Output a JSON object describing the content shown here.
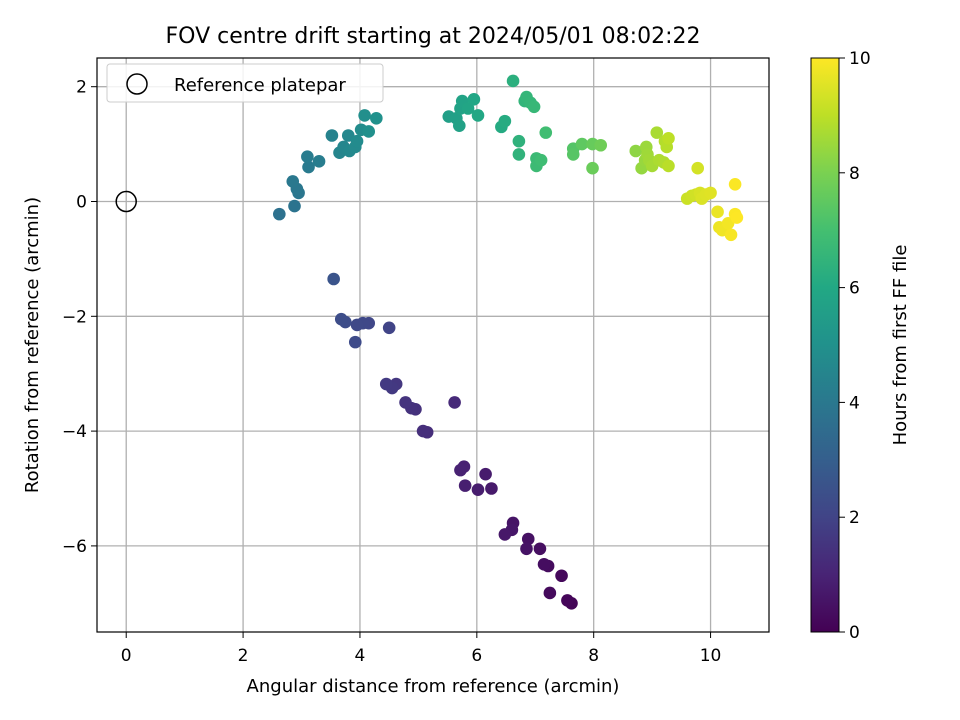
{
  "chart_data": {
    "type": "scatter",
    "title": "FOV centre drift starting at 2024/05/01 08:02:22",
    "xlabel": "Angular distance from reference (arcmin)",
    "ylabel": "Rotation from reference (arcmin)",
    "xlim": [
      -0.5,
      11
    ],
    "ylim": [
      -7.5,
      2.5
    ],
    "x_ticks": [
      0,
      2,
      4,
      6,
      8,
      10
    ],
    "y_ticks": [
      2,
      0,
      -2,
      -4,
      -6
    ],
    "grid": true,
    "legend": {
      "position": "top-left",
      "entries": [
        "Reference platepar"
      ]
    },
    "colorbar": {
      "label": "Hours from first FF file",
      "range": [
        0,
        10
      ],
      "ticks": [
        0,
        2,
        4,
        6,
        8,
        10
      ],
      "colormap": "viridis"
    },
    "reference_point": {
      "x": 0,
      "y": 0
    },
    "points": [
      [
        7.62,
        -7.0,
        0.1
      ],
      [
        7.55,
        -6.95,
        0.15
      ],
      [
        7.45,
        -6.52,
        0.2
      ],
      [
        7.25,
        -6.82,
        0.25
      ],
      [
        7.22,
        -6.35,
        0.3
      ],
      [
        7.15,
        -6.32,
        0.35
      ],
      [
        7.08,
        -6.05,
        0.4
      ],
      [
        6.88,
        -5.88,
        0.45
      ],
      [
        6.85,
        -6.05,
        0.5
      ],
      [
        6.62,
        -5.6,
        0.55
      ],
      [
        6.6,
        -5.72,
        0.6
      ],
      [
        6.48,
        -5.8,
        0.65
      ],
      [
        6.25,
        -5.0,
        0.7
      ],
      [
        6.15,
        -4.75,
        0.75
      ],
      [
        6.02,
        -5.02,
        0.8
      ],
      [
        5.8,
        -4.95,
        0.85
      ],
      [
        5.78,
        -4.62,
        0.9
      ],
      [
        5.72,
        -4.68,
        0.95
      ],
      [
        5.62,
        -3.5,
        1.2
      ],
      [
        5.15,
        -4.02,
        1.3
      ],
      [
        5.08,
        -4.0,
        1.35
      ],
      [
        4.95,
        -3.62,
        1.4
      ],
      [
        4.88,
        -3.6,
        1.45
      ],
      [
        4.78,
        -3.5,
        1.5
      ],
      [
        4.62,
        -3.18,
        1.6
      ],
      [
        4.55,
        -3.25,
        1.65
      ],
      [
        4.45,
        -3.18,
        1.7
      ],
      [
        4.5,
        -2.2,
        2.0
      ],
      [
        4.15,
        -2.12,
        2.1
      ],
      [
        4.05,
        -2.12,
        2.15
      ],
      [
        3.95,
        -2.15,
        2.2
      ],
      [
        3.92,
        -2.45,
        2.25
      ],
      [
        3.75,
        -2.1,
        2.3
      ],
      [
        3.68,
        -2.05,
        2.35
      ],
      [
        3.55,
        -1.35,
        2.6
      ],
      [
        2.62,
        -0.22,
        3.7
      ],
      [
        2.88,
        -0.08,
        3.8
      ],
      [
        2.95,
        0.15,
        3.9
      ],
      [
        2.92,
        0.22,
        3.95
      ],
      [
        2.85,
        0.35,
        4.0
      ],
      [
        3.12,
        0.6,
        4.1
      ],
      [
        3.1,
        0.78,
        4.15
      ],
      [
        3.3,
        0.7,
        4.2
      ],
      [
        3.52,
        1.15,
        4.4
      ],
      [
        3.65,
        0.85,
        4.5
      ],
      [
        3.72,
        0.95,
        4.55
      ],
      [
        3.8,
        1.15,
        4.6
      ],
      [
        3.82,
        0.88,
        4.65
      ],
      [
        3.92,
        0.95,
        4.7
      ],
      [
        3.95,
        1.05,
        4.75
      ],
      [
        4.02,
        1.25,
        4.8
      ],
      [
        4.08,
        1.5,
        4.9
      ],
      [
        4.15,
        1.22,
        4.95
      ],
      [
        4.28,
        1.45,
        5.0
      ],
      [
        5.52,
        1.48,
        5.6
      ],
      [
        5.65,
        1.45,
        5.65
      ],
      [
        5.7,
        1.32,
        5.7
      ],
      [
        5.72,
        1.62,
        5.75
      ],
      [
        5.75,
        1.75,
        5.8
      ],
      [
        5.85,
        1.62,
        5.85
      ],
      [
        5.95,
        1.78,
        5.9
      ],
      [
        6.02,
        1.5,
        5.95
      ],
      [
        6.42,
        1.3,
        6.1
      ],
      [
        6.48,
        1.4,
        6.15
      ],
      [
        6.62,
        2.1,
        6.3
      ],
      [
        6.72,
        1.05,
        6.4
      ],
      [
        6.72,
        0.82,
        6.45
      ],
      [
        6.82,
        1.75,
        6.5
      ],
      [
        6.85,
        1.82,
        6.55
      ],
      [
        6.92,
        1.72,
        6.6
      ],
      [
        6.98,
        1.65,
        6.65
      ],
      [
        7.02,
        0.75,
        6.75
      ],
      [
        7.02,
        0.62,
        6.8
      ],
      [
        7.1,
        0.72,
        6.85
      ],
      [
        7.18,
        1.2,
        6.9
      ],
      [
        7.65,
        0.92,
        7.3
      ],
      [
        7.65,
        0.82,
        7.35
      ],
      [
        7.8,
        1.0,
        7.5
      ],
      [
        7.98,
        1.0,
        7.65
      ],
      [
        7.98,
        0.58,
        7.7
      ],
      [
        8.12,
        0.98,
        7.8
      ],
      [
        8.72,
        0.88,
        8.3
      ],
      [
        8.82,
        0.58,
        8.4
      ],
      [
        8.88,
        0.72,
        8.45
      ],
      [
        8.9,
        0.95,
        8.5
      ],
      [
        8.92,
        0.82,
        8.55
      ],
      [
        8.95,
        0.72,
        8.6
      ],
      [
        9.0,
        0.62,
        8.65
      ],
      [
        9.08,
        1.2,
        8.7
      ],
      [
        9.12,
        0.72,
        8.75
      ],
      [
        9.2,
        0.68,
        8.8
      ],
      [
        9.22,
        1.05,
        8.85
      ],
      [
        9.25,
        0.95,
        8.9
      ],
      [
        9.28,
        0.62,
        8.95
      ],
      [
        9.28,
        1.1,
        9.0
      ],
      [
        9.6,
        0.05,
        9.2
      ],
      [
        9.68,
        0.1,
        9.25
      ],
      [
        9.75,
        0.12,
        9.3
      ],
      [
        9.78,
        0.58,
        9.35
      ],
      [
        9.82,
        0.15,
        9.4
      ],
      [
        9.85,
        0.05,
        9.45
      ],
      [
        9.92,
        0.12,
        9.5
      ],
      [
        10.0,
        0.15,
        9.55
      ],
      [
        10.12,
        -0.18,
        9.7
      ],
      [
        10.15,
        -0.45,
        9.75
      ],
      [
        10.2,
        -0.5,
        9.8
      ],
      [
        10.3,
        -0.38,
        9.85
      ],
      [
        10.35,
        -0.58,
        9.9
      ],
      [
        10.42,
        0.3,
        9.95
      ],
      [
        10.42,
        -0.22,
        9.97
      ],
      [
        10.45,
        -0.28,
        10.0
      ]
    ]
  }
}
